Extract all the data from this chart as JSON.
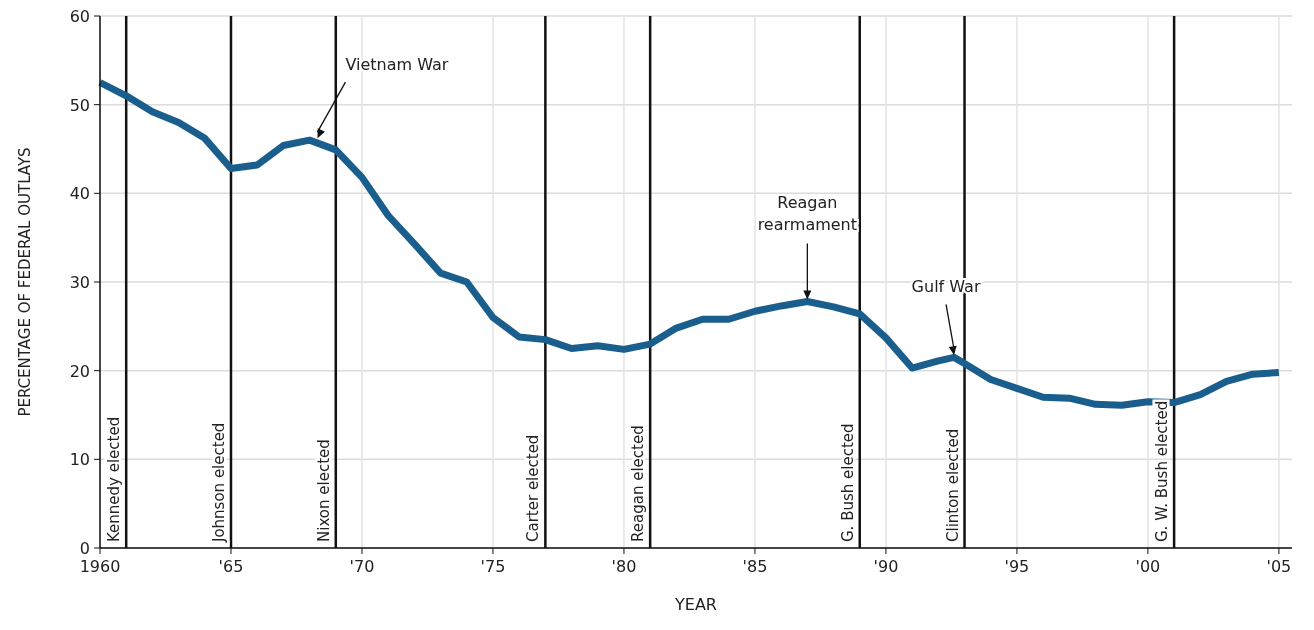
{
  "chart_data": {
    "type": "line",
    "xlabel": "YEAR",
    "ylabel": "PERCENTAGE OF FEDERAL OUTLAYS",
    "x": [
      1960,
      1961,
      1962,
      1963,
      1964,
      1965,
      1966,
      1967,
      1968,
      1969,
      1970,
      1971,
      1972,
      1973,
      1974,
      1975,
      1976,
      1977,
      1978,
      1979,
      1980,
      1981,
      1982,
      1983,
      1984,
      1985,
      1986,
      1987,
      1988,
      1989,
      1990,
      1991,
      1992,
      1992.6,
      1993,
      1994,
      1995,
      1996,
      1997,
      1998,
      1999,
      2000,
      2001,
      2002,
      2003,
      2004,
      2005
    ],
    "series": [
      {
        "color": "#1a5e8e",
        "values": [
          52.5,
          51,
          49.2,
          48,
          46.2,
          42.8,
          43.2,
          45.4,
          46,
          44.9,
          41.8,
          37.5,
          34.3,
          31,
          30,
          26,
          23.8,
          23.5,
          22.5,
          22.8,
          22.4,
          23,
          24.8,
          25.8,
          25.8,
          26.7,
          27.3,
          27.8,
          27.2,
          26.4,
          23.7,
          20.3,
          21.1,
          21.5,
          20.8,
          19,
          18,
          17,
          16.9,
          16.2,
          16.1,
          16.5,
          16.4,
          17.3,
          18.8,
          19.6,
          19.8
        ]
      }
    ],
    "xlim": [
      1960,
      2005.5
    ],
    "xticks": [
      1960,
      {
        "value": 1965,
        "label": "'65"
      },
      {
        "value": 1970,
        "label": "'70"
      },
      {
        "value": 1975,
        "label": "'75"
      },
      {
        "value": 1980,
        "label": "'80"
      },
      {
        "value": 1985,
        "label": "'85"
      },
      {
        "value": 1990,
        "label": "'90"
      },
      {
        "value": 1995,
        "label": "'95"
      },
      {
        "value": 2000,
        "label": "'00"
      },
      {
        "value": 2005,
        "label": "'05"
      }
    ],
    "ylim": [
      0,
      60
    ],
    "yticks": [
      0,
      10,
      20,
      30,
      40,
      50,
      60
    ],
    "grid": true,
    "line_style": "solid",
    "marker": "none",
    "ref_lines": [
      {
        "axis": "x",
        "value": 1961,
        "label": "Kennedy elected"
      },
      {
        "axis": "x",
        "value": 1965,
        "label": "Johnson elected"
      },
      {
        "axis": "x",
        "value": 1969,
        "label": "Nixon elected"
      },
      {
        "axis": "x",
        "value": 1977,
        "label": "Carter elected"
      },
      {
        "axis": "x",
        "value": 1981,
        "label": "Reagan elected"
      },
      {
        "axis": "x",
        "value": 1989,
        "label": "G. Bush elected"
      },
      {
        "axis": "x",
        "value": 1993,
        "label": "Clinton elected"
      },
      {
        "axis": "x",
        "value": 2001,
        "label": "G. W. Bush elected"
      }
    ],
    "annotations": [
      {
        "text": "Vietnam War",
        "x": 1968.3,
        "y": 46
      },
      {
        "text": "Reagan rearmament",
        "x": 1987,
        "y": 27.8
      },
      {
        "text": "Gulf War",
        "x": 1992.6,
        "y": 21.5
      }
    ]
  }
}
